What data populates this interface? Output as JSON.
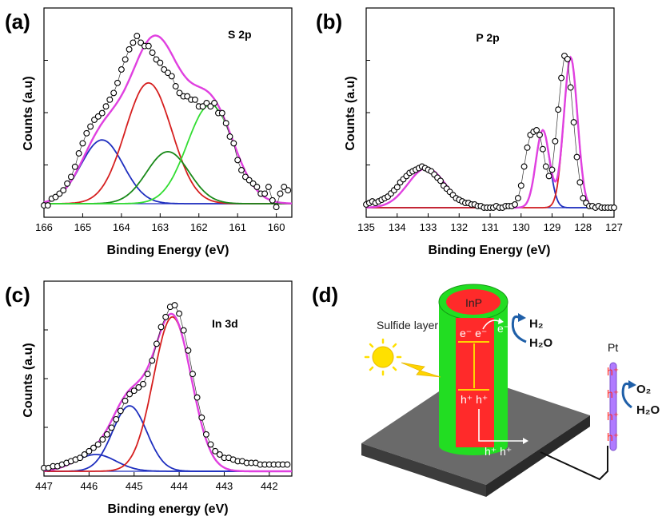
{
  "chart_data": [
    {
      "id": "a",
      "panel_label": "(a)",
      "type": "line",
      "title": "S 2p",
      "xlabel": "Binding Energy (eV)",
      "ylabel": "Counts (a.u)",
      "xlim": [
        166,
        159.6
      ],
      "ylim": [
        0,
        100
      ],
      "xticks": [
        166,
        165,
        164,
        163,
        162,
        161,
        160
      ],
      "peaks": [
        {
          "name": "blue",
          "color": "#1f2fbf",
          "center": 164.5,
          "amp": 38,
          "width": 0.55
        },
        {
          "name": "red",
          "color": "#d62020",
          "center": 163.3,
          "amp": 72,
          "width": 0.6
        },
        {
          "name": "dark-green",
          "color": "#1a8a1a",
          "center": 162.8,
          "amp": 31,
          "width": 0.55
        },
        {
          "name": "light-green",
          "color": "#33dd33",
          "center": 161.7,
          "amp": 59,
          "width": 0.6
        }
      ],
      "envelope_color": "#e040e0",
      "points_x": [
        166,
        165.9,
        165.8,
        165.7,
        165.6,
        165.5,
        165.4,
        165.3,
        165.2,
        165.1,
        165,
        164.9,
        164.8,
        164.7,
        164.6,
        164.5,
        164.4,
        164.3,
        164.2,
        164.1,
        164,
        163.9,
        163.8,
        163.7,
        163.6,
        163.5,
        163.4,
        163.3,
        163.2,
        163.1,
        163,
        162.9,
        162.8,
        162.7,
        162.6,
        162.5,
        162.4,
        162.3,
        162.2,
        162.1,
        162,
        161.9,
        161.8,
        161.7,
        161.6,
        161.5,
        161.4,
        161.3,
        161.2,
        161.1,
        161,
        160.9,
        160.8,
        160.7,
        160.6,
        160.5,
        160.4,
        160.3,
        160.2,
        160.1,
        160,
        159.9,
        159.8,
        159.7
      ],
      "points_y": [
        -1,
        -1,
        3,
        4,
        6,
        8,
        12,
        16,
        22,
        30,
        36,
        42,
        46,
        50,
        52,
        54,
        58,
        62,
        66,
        72,
        80,
        86,
        92,
        96,
        100,
        96,
        94,
        94,
        90,
        86,
        84,
        80,
        78,
        76,
        70,
        66,
        64,
        64,
        62,
        62,
        58,
        58,
        60,
        58,
        60,
        54,
        54,
        48,
        40,
        36,
        26,
        20,
        16,
        14,
        12,
        10,
        6,
        6,
        10,
        2,
        -2,
        6,
        10,
        8
      ]
    },
    {
      "id": "b",
      "panel_label": "(b)",
      "type": "line",
      "title": "P 2p",
      "xlabel": "Binding Energy (eV)",
      "ylabel": "Counts (a.u)",
      "xlim": [
        135,
        127
      ],
      "ylim": [
        0,
        100
      ],
      "xticks": [
        135,
        134,
        133,
        132,
        131,
        130,
        129,
        128,
        127
      ],
      "peaks": [
        {
          "name": "blue",
          "color": "#1f2fbf",
          "center": 129.3,
          "amp": 49,
          "width": 0.22
        },
        {
          "name": "red",
          "color": "#d62020",
          "center": 128.4,
          "amp": 95,
          "width": 0.22
        }
      ],
      "broad_peak": {
        "center": 133.05,
        "amp": 25,
        "width": 0.6
      },
      "envelope_color": "#e040e0",
      "points_x": [
        135,
        134.9,
        134.8,
        134.7,
        134.6,
        134.5,
        134.4,
        134.3,
        134.2,
        134.1,
        134,
        133.9,
        133.8,
        133.7,
        133.6,
        133.5,
        133.4,
        133.3,
        133.2,
        133.1,
        133,
        132.9,
        132.8,
        132.7,
        132.6,
        132.5,
        132.4,
        132.3,
        132.2,
        132.1,
        132,
        131.9,
        131.8,
        131.7,
        131.6,
        131.5,
        131.4,
        131.3,
        131.2,
        131.1,
        131,
        130.9,
        130.8,
        130.7,
        130.6,
        130.5,
        130.4,
        130.3,
        130.2,
        130.1,
        130,
        129.9,
        129.8,
        129.7,
        129.6,
        129.5,
        129.4,
        129.3,
        129.2,
        129.1,
        129,
        128.9,
        128.8,
        128.7,
        128.6,
        128.5,
        128.4,
        128.3,
        128.2,
        128.1,
        128,
        127.9,
        127.8,
        127.7,
        127.6,
        127.5,
        127.4,
        127.3,
        127.2,
        127.1,
        127
      ],
      "points_y": [
        2,
        3,
        4,
        3,
        4,
        5,
        6,
        7,
        9,
        11,
        13,
        16,
        18,
        20,
        22,
        23,
        24,
        25,
        26,
        25,
        24,
        23,
        21,
        19,
        17,
        14,
        12,
        10,
        8,
        6,
        5,
        4,
        3,
        3,
        2,
        2,
        1,
        1,
        0,
        0,
        0,
        0,
        1,
        0,
        0,
        1,
        1,
        1,
        2,
        6,
        14,
        26,
        38,
        46,
        48,
        49,
        46,
        37,
        26,
        20,
        24,
        42,
        62,
        82,
        96,
        94,
        76,
        54,
        32,
        16,
        6,
        3,
        1,
        1,
        0,
        1,
        0,
        0,
        0,
        0,
        0
      ]
    },
    {
      "id": "c",
      "panel_label": "(c)",
      "type": "line",
      "title": "In 3d",
      "xlabel": "Binding energy (eV)",
      "ylabel": "Counts (a.u)",
      "xlim": [
        447,
        441.5
      ],
      "ylim": [
        0,
        100
      ],
      "xticks": [
        447,
        446,
        445,
        444,
        443,
        442
      ],
      "peaks": [
        {
          "name": "navy",
          "color": "#1f2fbf",
          "center": 445.85,
          "amp": 10,
          "width": 0.45
        },
        {
          "name": "blue",
          "color": "#1f2fbf",
          "center": 445.1,
          "amp": 39,
          "width": 0.38
        },
        {
          "name": "red",
          "color": "#d62020",
          "center": 444.15,
          "amp": 92,
          "width": 0.42
        }
      ],
      "envelope_color": "#e040e0",
      "points_x": [
        447,
        446.9,
        446.8,
        446.7,
        446.6,
        446.5,
        446.4,
        446.3,
        446.2,
        446.1,
        446,
        445.9,
        445.8,
        445.7,
        445.6,
        445.5,
        445.4,
        445.3,
        445.2,
        445.1,
        445,
        444.9,
        444.8,
        444.7,
        444.6,
        444.5,
        444.4,
        444.3,
        444.2,
        444.1,
        444,
        443.9,
        443.8,
        443.7,
        443.6,
        443.5,
        443.4,
        443.3,
        443.2,
        443.1,
        443,
        442.9,
        442.8,
        442.7,
        442.6,
        442.5,
        442.4,
        442.3,
        442.2,
        442.1,
        442,
        441.9,
        441.8,
        441.7,
        441.6
      ],
      "points_y": [
        2,
        2,
        3,
        3,
        4,
        5,
        6,
        7,
        8,
        10,
        12,
        14,
        16,
        19,
        22,
        26,
        31,
        36,
        42,
        46,
        48,
        50,
        52,
        58,
        66,
        76,
        86,
        92,
        98,
        99,
        94,
        84,
        72,
        58,
        44,
        32,
        22,
        16,
        12,
        10,
        8,
        8,
        7,
        6,
        6,
        5,
        5,
        5,
        4,
        4,
        4,
        4,
        4,
        4,
        4
      ]
    }
  ],
  "diagram": {
    "panel_label": "(d)",
    "core_label": "InP",
    "shell_label": "Sulfide layer",
    "electrons": "e⁻ e⁻",
    "holes": "h⁺ h⁺",
    "transfer_electron": "e⁻",
    "h2": "H₂",
    "h2o_top": "H₂O",
    "holes_bottom": "h⁺ h⁺",
    "counter_electrode": "Pt",
    "o2": "O₂",
    "h2o_right": "H₂O",
    "pt_holes": [
      "h⁺",
      "h⁺",
      "h⁺",
      "h⁺"
    ],
    "colors": {
      "core": "#ff2a2a",
      "shell": "#22dd22",
      "base": "#555555",
      "arrow": "#1f5fa8",
      "pt": "#b07bff",
      "sun": "#ffe000"
    }
  }
}
